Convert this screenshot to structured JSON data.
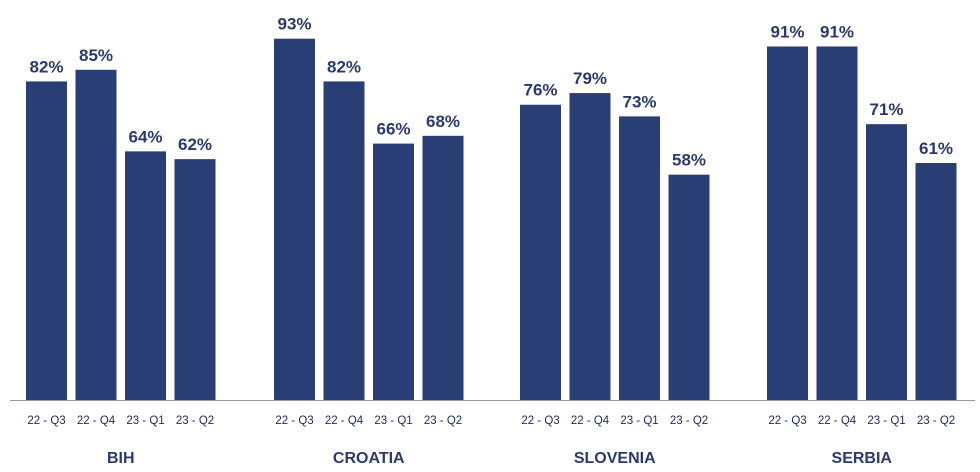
{
  "chart_data": {
    "type": "bar",
    "groups": [
      {
        "name": "BIH",
        "categories": [
          "22 - Q3",
          "22 - Q4",
          "23 - Q1",
          "23 - Q2"
        ],
        "values": [
          82,
          85,
          64,
          62
        ],
        "labels": [
          "82%",
          "85%",
          "64%",
          "62%"
        ]
      },
      {
        "name": "CROATIA",
        "categories": [
          "22 - Q3",
          "22 - Q4",
          "23 - Q1",
          "23 - Q2"
        ],
        "values": [
          93,
          82,
          66,
          68
        ],
        "labels": [
          "93%",
          "82%",
          "66%",
          "68%"
        ]
      },
      {
        "name": "SLOVENIA",
        "categories": [
          "22 - Q3",
          "22 - Q4",
          "23 - Q1",
          "23 - Q2"
        ],
        "values": [
          76,
          79,
          73,
          58
        ],
        "labels": [
          "76%",
          "79%",
          "73%",
          "58%"
        ]
      },
      {
        "name": "SERBIA",
        "categories": [
          "22 - Q3",
          "22 - Q4",
          "23 - Q1",
          "23 - Q2"
        ],
        "values": [
          91,
          91,
          71,
          61
        ],
        "labels": [
          "91%",
          "91%",
          "71%",
          "61%"
        ]
      }
    ],
    "unit": "%",
    "ylim": [
      0,
      100
    ],
    "grid": false,
    "legend": "none",
    "colors": {
      "bar": "#283e74",
      "text": "#2b3a6b",
      "axis": "#999999"
    }
  }
}
